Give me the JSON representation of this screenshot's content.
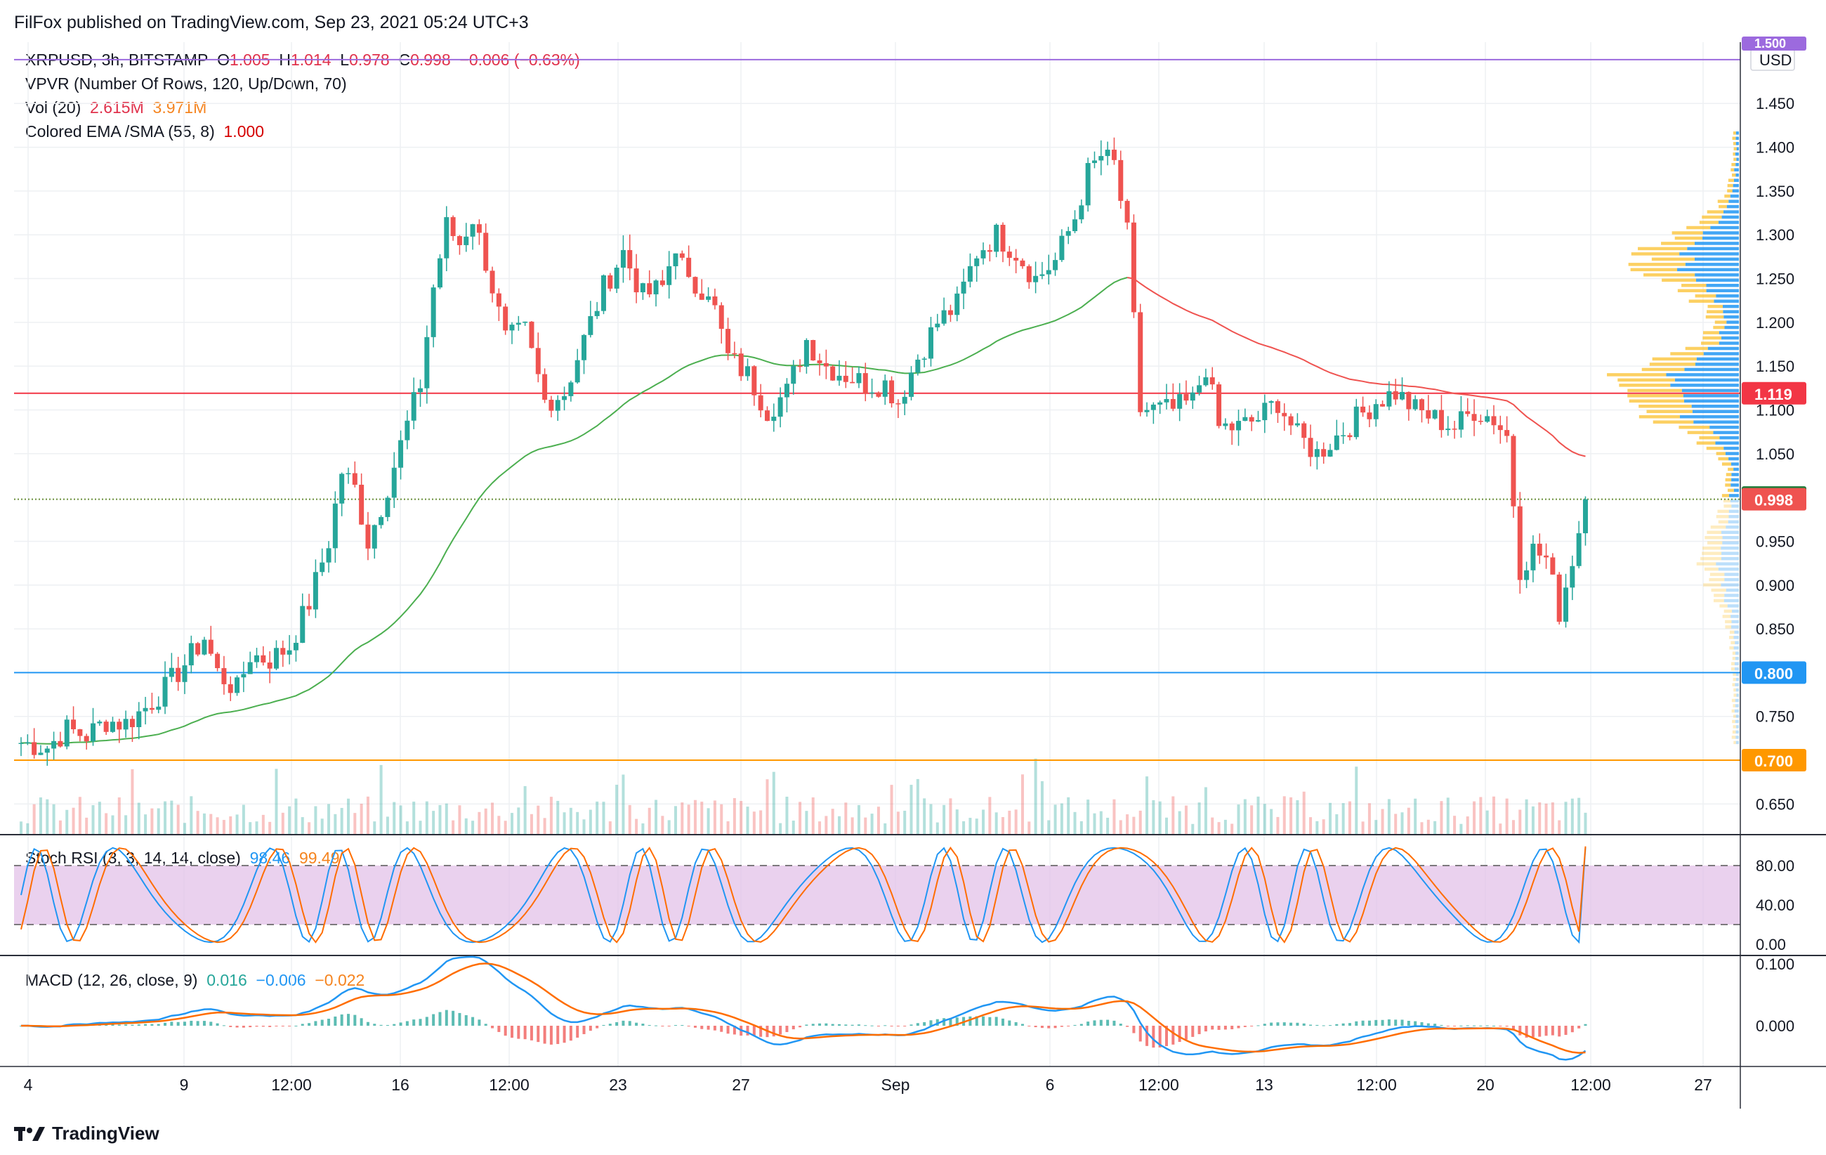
{
  "publisher": "FilFox published on TradingView.com, Sep 23, 2021 05:24 UTC+3",
  "footer": {
    "brand": "TradingView"
  },
  "legend": {
    "main_prefix": "XRPUSD, 3h, BITSTAMP",
    "o_label": "O",
    "o": "1.005",
    "h_label": "H",
    "h": "1.014",
    "l_label": "L",
    "l": "0.978",
    "c_label": "C",
    "c": "0.998",
    "change": "−0.006 (−0.63%)",
    "vpvr": "VPVR (Number Of Rows, 120, Up/Down, 70)",
    "vol_label": "Vol (20)",
    "vol_a": "2.615M",
    "vol_b": "3.971M",
    "ema_label": "Colored EMA /SMA (55, 8)",
    "ema_val": "1.000",
    "stoch_label": "Stoch RSI (3, 3, 14, 14, close)",
    "stoch_k": "98.46",
    "stoch_d": "99.49",
    "macd_label": "MACD (12, 26, close, 9)",
    "macd_hist": "0.016",
    "macd_line": "−0.006",
    "macd_signal": "−0.022"
  },
  "colors": {
    "up": "#26a69a",
    "down": "#ef5350",
    "ema": "#4caf50",
    "sma": "#ef5350",
    "vpvr_up": "#2196f3",
    "vpvr_down": "#fbc02d",
    "stoch_band": "#e1bee7",
    "stoch_k": "#2196f3",
    "stoch_d": "#ff6d00",
    "macd": "#2196f3",
    "signal": "#ff6d00",
    "level_red": "#f23645",
    "level_blue": "#2196f3",
    "level_orange": "#ff9800",
    "level_purple": "#9c6ade"
  },
  "chart_data": {
    "type": "candlestick",
    "symbol": "XRPUSD",
    "timeframe": "3h",
    "exchange": "BITSTAMP",
    "currency": "USD",
    "ylim": [
      0.615,
      1.52
    ],
    "price_ticks": [
      "1.450",
      "1.400",
      "1.350",
      "1.300",
      "1.250",
      "1.200",
      "1.150",
      "1.100",
      "1.050",
      "0.950",
      "0.900",
      "0.850",
      "0.750",
      "0.650"
    ],
    "x_ticks": [
      "4",
      "9",
      "12:00",
      "16",
      "12:00",
      "23",
      "27",
      "Sep",
      "6",
      "12:00",
      "13",
      "12:00",
      "20",
      "12:00",
      "27"
    ],
    "price_labels": [
      {
        "value": 1.5,
        "text": "1.500",
        "kind": "level_purple"
      },
      {
        "value": 1.119,
        "text": "1.119",
        "kind": "level_red"
      },
      {
        "value": 1.0,
        "text": "1.000",
        "kind": "ema"
      },
      {
        "value": 0.998,
        "text": "0.998",
        "kind": "price"
      },
      {
        "value": 0.8,
        "text": "0.800",
        "kind": "level_blue"
      },
      {
        "value": 0.7,
        "text": "0.700",
        "kind": "level_orange"
      }
    ],
    "horizontal_levels": [
      1.5,
      1.119,
      0.8,
      0.7
    ],
    "close_path": [
      [
        0,
        0.72
      ],
      [
        4,
        0.715
      ],
      [
        7,
        0.735
      ],
      [
        10,
        0.728
      ],
      [
        13,
        0.745
      ],
      [
        16,
        0.742
      ],
      [
        19,
        0.76
      ],
      [
        22,
        0.782
      ],
      [
        25,
        0.81
      ],
      [
        28,
        0.84
      ],
      [
        30,
        0.8
      ],
      [
        33,
        0.78
      ],
      [
        35,
        0.82
      ],
      [
        38,
        0.815
      ],
      [
        41,
        0.83
      ],
      [
        44,
        0.88
      ],
      [
        47,
        0.95
      ],
      [
        49,
        1.03
      ],
      [
        51,
        1.01
      ],
      [
        53,
        0.95
      ],
      [
        55,
        0.99
      ],
      [
        58,
        1.06
      ],
      [
        61,
        1.13
      ],
      [
        63,
        1.24
      ],
      [
        65,
        1.31
      ],
      [
        67,
        1.29
      ],
      [
        69,
        1.32
      ],
      [
        71,
        1.27
      ],
      [
        74,
        1.18
      ],
      [
        77,
        1.19
      ],
      [
        80,
        1.11
      ],
      [
        83,
        1.12
      ],
      [
        86,
        1.18
      ],
      [
        89,
        1.24
      ],
      [
        92,
        1.28
      ],
      [
        95,
        1.23
      ],
      [
        98,
        1.24
      ],
      [
        100,
        1.29
      ],
      [
        102,
        1.24
      ],
      [
        105,
        1.24
      ],
      [
        108,
        1.16
      ],
      [
        111,
        1.14
      ],
      [
        114,
        1.1
      ],
      [
        117,
        1.12
      ],
      [
        120,
        1.18
      ],
      [
        123,
        1.15
      ],
      [
        126,
        1.14
      ],
      [
        129,
        1.13
      ],
      [
        132,
        1.13
      ],
      [
        134,
        1.11
      ],
      [
        137,
        1.16
      ],
      [
        140,
        1.2
      ],
      [
        143,
        1.22
      ],
      [
        146,
        1.28
      ],
      [
        149,
        1.3
      ],
      [
        152,
        1.28
      ],
      [
        155,
        1.25
      ],
      [
        158,
        1.27
      ],
      [
        161,
        1.32
      ],
      [
        163,
        1.37
      ],
      [
        165,
        1.39
      ],
      [
        167,
        1.38
      ],
      [
        169,
        1.3
      ],
      [
        171,
        1.1
      ],
      [
        173,
        1.1
      ],
      [
        176,
        1.1
      ],
      [
        179,
        1.11
      ],
      [
        181,
        1.15
      ],
      [
        183,
        1.08
      ],
      [
        186,
        1.08
      ],
      [
        189,
        1.09
      ],
      [
        192,
        1.11
      ],
      [
        195,
        1.07
      ],
      [
        198,
        1.05
      ],
      [
        201,
        1.07
      ],
      [
        204,
        1.09
      ],
      [
        207,
        1.11
      ],
      [
        210,
        1.12
      ],
      [
        213,
        1.1
      ],
      [
        216,
        1.09
      ],
      [
        219,
        1.08
      ],
      [
        222,
        1.1
      ],
      [
        225,
        1.09
      ],
      [
        227,
        1.07
      ],
      [
        229,
        0.92
      ],
      [
        231,
        0.94
      ],
      [
        233,
        0.93
      ],
      [
        235,
        0.87
      ],
      [
        237,
        0.93
      ],
      [
        239,
        0.995
      ]
    ],
    "stoch_rsi": {
      "levels": [
        80,
        20
      ],
      "k": 98.46,
      "d": 99.49,
      "ticks": [
        "80.00",
        "40.00",
        "0.00"
      ]
    },
    "macd": {
      "histogram": 0.016,
      "macd": -0.006,
      "signal": -0.022,
      "ticks": [
        "0.100",
        "0.000"
      ]
    },
    "volume": {
      "last_a": "2.615M",
      "last_b": "3.971M"
    }
  }
}
